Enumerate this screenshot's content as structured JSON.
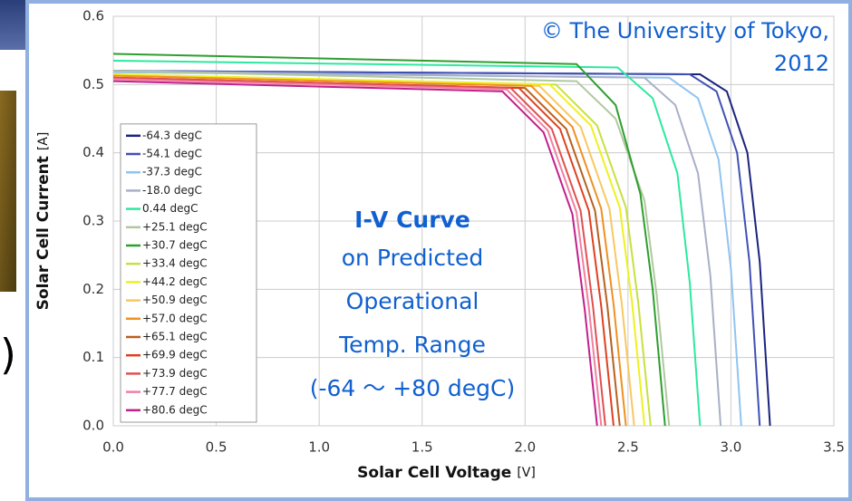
{
  "slide_fragment": ")",
  "chart_data": {
    "type": "line",
    "y_label": "Solar Cell Current",
    "y_unit": "[A]",
    "x_label": "Solar Cell Voltage",
    "x_unit": "[V]",
    "annotations": [
      "© The University of Tokyo,",
      "2012"
    ],
    "callout": {
      "title": "I-V Curve",
      "lines": [
        "on Predicted",
        "Operational",
        "Temp. Range",
        "(-64 〜 +80 degC)"
      ]
    },
    "xlim": [
      0,
      3.5
    ],
    "ylim": [
      0,
      0.6
    ],
    "xticks": [
      {
        "value": 0,
        "label": "0.0"
      },
      0.5,
      {
        "value": 1,
        "label": "1.0"
      },
      1.5,
      {
        "value": 2,
        "label": "2.0"
      },
      2.5,
      {
        "value": 3,
        "label": "3.0"
      },
      3.5
    ],
    "yticks": [
      {
        "value": 0,
        "label": "0.0"
      },
      0.1,
      0.2,
      0.3,
      0.4,
      0.5,
      0.6
    ],
    "grid": true,
    "legend": "lower left",
    "series": [
      {
        "name": "-64.3 degC",
        "color": "#1a237e",
        "x": [
          0,
          2.85,
          2.98,
          3.08,
          3.14,
          3.19
        ],
        "values": [
          0.52,
          0.515,
          0.49,
          0.4,
          0.24,
          0
        ]
      },
      {
        "name": "-54.1 degC",
        "color": "#3f51b5",
        "x": [
          0,
          2.8,
          2.93,
          3.03,
          3.09,
          3.14
        ],
        "values": [
          0.52,
          0.515,
          0.49,
          0.4,
          0.24,
          0
        ]
      },
      {
        "name": "-37.3 degC",
        "color": "#90c4f0",
        "x": [
          0,
          2.7,
          2.84,
          2.94,
          3.0,
          3.05
        ],
        "values": [
          0.518,
          0.51,
          0.48,
          0.39,
          0.23,
          0
        ]
      },
      {
        "name": "-18.0 degC",
        "color": "#a8b0c8",
        "x": [
          0,
          2.58,
          2.73,
          2.84,
          2.9,
          2.95
        ],
        "values": [
          0.52,
          0.51,
          0.47,
          0.37,
          0.22,
          0
        ]
      },
      {
        "name": "0.44 degC",
        "color": "#2ee8a0",
        "x": [
          0,
          2.45,
          2.62,
          2.74,
          2.8,
          2.85
        ],
        "values": [
          0.535,
          0.525,
          0.48,
          0.37,
          0.21,
          0
        ]
      },
      {
        "name": "+25.1 degC",
        "color": "#b0c8a0",
        "x": [
          0,
          2.25,
          2.44,
          2.58,
          2.64,
          2.7
        ],
        "values": [
          0.52,
          0.505,
          0.45,
          0.33,
          0.19,
          0
        ]
      },
      {
        "name": "+30.7 degC",
        "color": "#2e9e2e",
        "x": [
          0,
          2.25,
          2.44,
          2.56,
          2.62,
          2.68
        ],
        "values": [
          0.545,
          0.53,
          0.47,
          0.34,
          0.2,
          0
        ]
      },
      {
        "name": "+33.4 degC",
        "color": "#c8e040",
        "x": [
          0,
          2.15,
          2.35,
          2.49,
          2.55,
          2.61
        ],
        "values": [
          0.515,
          0.5,
          0.44,
          0.32,
          0.18,
          0
        ]
      },
      {
        "name": "+44.2 degC",
        "color": "#f0f020",
        "x": [
          0,
          2.12,
          2.32,
          2.46,
          2.52,
          2.58
        ],
        "values": [
          0.515,
          0.5,
          0.44,
          0.32,
          0.18,
          0
        ]
      },
      {
        "name": "+50.9 degC",
        "color": "#f8c860",
        "x": [
          0,
          2.07,
          2.27,
          2.41,
          2.47,
          2.53
        ],
        "values": [
          0.513,
          0.498,
          0.438,
          0.318,
          0.178,
          0
        ]
      },
      {
        "name": "+57.0 degC",
        "color": "#f09020",
        "x": [
          0,
          2.03,
          2.23,
          2.37,
          2.43,
          2.49
        ],
        "values": [
          0.513,
          0.498,
          0.438,
          0.318,
          0.178,
          0
        ]
      },
      {
        "name": "+65.1 degC",
        "color": "#b86020",
        "x": [
          0,
          2.0,
          2.2,
          2.34,
          2.4,
          2.46
        ],
        "values": [
          0.51,
          0.495,
          0.435,
          0.315,
          0.175,
          0
        ]
      },
      {
        "name": "+69.9 degC",
        "color": "#e04020",
        "x": [
          0,
          1.97,
          2.17,
          2.31,
          2.37,
          2.43
        ],
        "values": [
          0.51,
          0.495,
          0.435,
          0.315,
          0.175,
          0
        ]
      },
      {
        "name": "+73.9 degC",
        "color": "#e05050",
        "x": [
          0,
          1.93,
          2.13,
          2.27,
          2.33,
          2.39
        ],
        "values": [
          0.51,
          0.495,
          0.435,
          0.315,
          0.175,
          0
        ]
      },
      {
        "name": "+77.7 degC",
        "color": "#f080a0",
        "x": [
          0,
          1.91,
          2.11,
          2.25,
          2.31,
          2.37
        ],
        "values": [
          0.508,
          0.493,
          0.433,
          0.313,
          0.173,
          0
        ]
      },
      {
        "name": "+80.6 degC",
        "color": "#c0208c",
        "x": [
          0,
          1.89,
          2.09,
          2.23,
          2.29,
          2.35
        ],
        "values": [
          0.505,
          0.49,
          0.43,
          0.31,
          0.17,
          0
        ]
      }
    ]
  }
}
